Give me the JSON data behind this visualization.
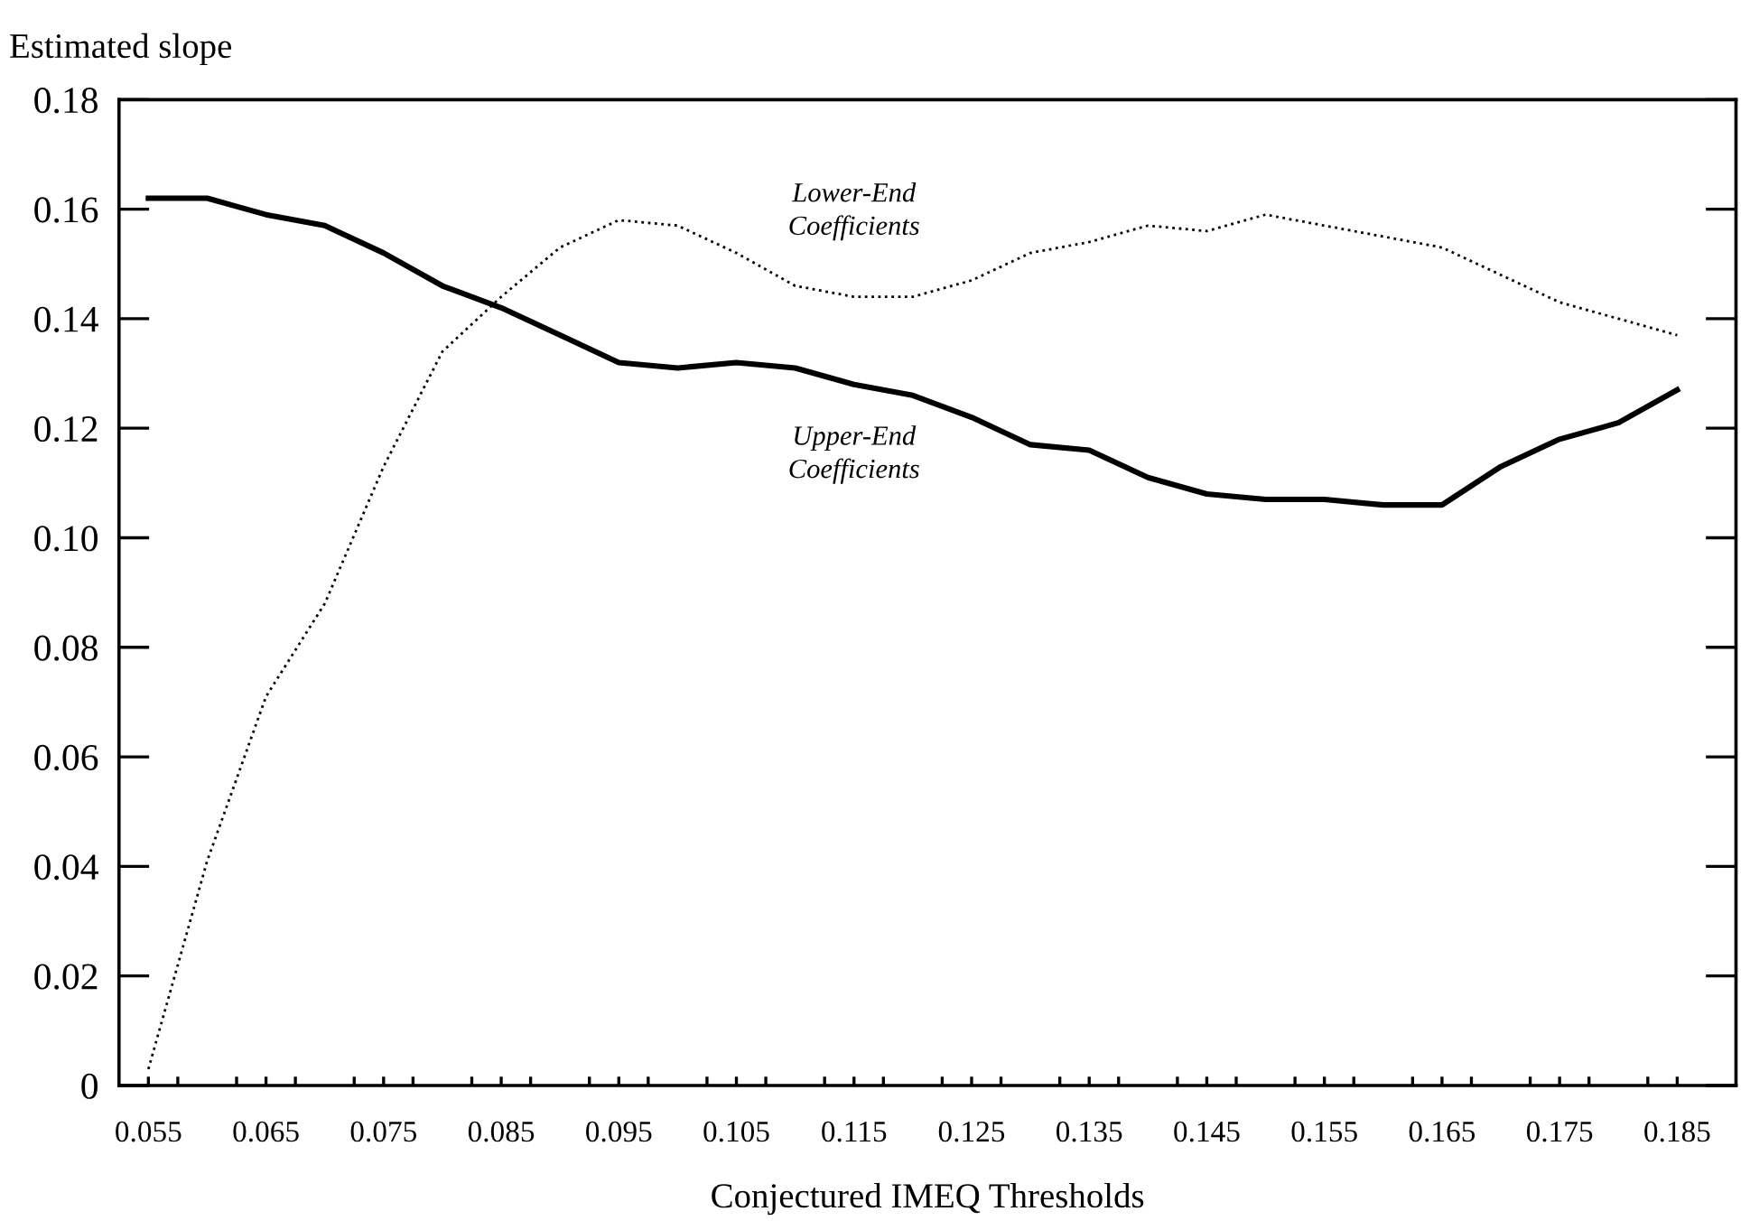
{
  "chart_data": {
    "type": "line",
    "xlabel": "Conjectured IMEQ Thresholds",
    "ylabel": "Estimated slope",
    "x": [
      0.055,
      0.06,
      0.065,
      0.07,
      0.075,
      0.08,
      0.085,
      0.09,
      0.095,
      0.1,
      0.105,
      0.11,
      0.115,
      0.12,
      0.125,
      0.13,
      0.135,
      0.14,
      0.145,
      0.15,
      0.155,
      0.16,
      0.165,
      0.17,
      0.175,
      0.18,
      0.185
    ],
    "series": [
      {
        "name": "Upper-End Coefficients",
        "color": "#000000",
        "line_style": "solid",
        "values": [
          0.162,
          0.162,
          0.159,
          0.157,
          0.152,
          0.146,
          0.142,
          0.137,
          0.132,
          0.131,
          0.132,
          0.131,
          0.128,
          0.126,
          0.122,
          0.117,
          0.116,
          0.111,
          0.108,
          0.107,
          0.107,
          0.106,
          0.106,
          0.113,
          0.118,
          0.121,
          0.127
        ]
      },
      {
        "name": "Lower-End Coefficients",
        "color": "#000000",
        "line_style": "dotted",
        "values": [
          0.003,
          0.041,
          0.071,
          0.088,
          0.113,
          0.134,
          0.144,
          0.153,
          0.158,
          0.157,
          0.152,
          0.146,
          0.144,
          0.144,
          0.147,
          0.152,
          0.154,
          0.157,
          0.156,
          0.159,
          0.157,
          0.155,
          0.153,
          0.148,
          0.143,
          0.14,
          0.137
        ]
      }
    ],
    "xlim": [
      0.0525,
      0.19
    ],
    "xticks": [
      0.055,
      {
        "value": 0.0575,
        "label": null
      },
      {
        "value": 0.0625,
        "label": null
      },
      0.065,
      {
        "value": 0.0675,
        "label": null
      },
      {
        "value": 0.0725,
        "label": null
      },
      0.075,
      {
        "value": 0.0775,
        "label": null
      },
      {
        "value": 0.0825,
        "label": null
      },
      0.085,
      {
        "value": 0.0875,
        "label": null
      },
      {
        "value": 0.0925,
        "label": null
      },
      0.095,
      {
        "value": 0.0975,
        "label": null
      },
      {
        "value": 0.1025,
        "label": null
      },
      0.105,
      {
        "value": 0.1075,
        "label": null
      },
      {
        "value": 0.1125,
        "label": null
      },
      0.115,
      {
        "value": 0.1175,
        "label": null
      },
      {
        "value": 0.1225,
        "label": null
      },
      0.125,
      {
        "value": 0.1275,
        "label": null
      },
      {
        "value": 0.1325,
        "label": null
      },
      0.135,
      {
        "value": 0.1375,
        "label": null
      },
      {
        "value": 0.1425,
        "label": null
      },
      0.145,
      {
        "value": 0.1475,
        "label": null
      },
      {
        "value": 0.1525,
        "label": null
      },
      0.155,
      {
        "value": 0.1575,
        "label": null
      },
      {
        "value": 0.1625,
        "label": null
      },
      0.165,
      {
        "value": 0.1675,
        "label": null
      },
      {
        "value": 0.1725,
        "label": null
      },
      0.175,
      {
        "value": 0.1775,
        "label": null
      },
      {
        "value": 0.1825,
        "label": null
      },
      0.185
    ],
    "ylim": [
      0,
      0.18
    ],
    "yticks": [
      0,
      0.02,
      0.04,
      0.06,
      0.08,
      {
        "value": 0.1,
        "label": "0.10"
      },
      0.12,
      0.14,
      0.16,
      0.18
    ],
    "grid": false,
    "legend": false
  }
}
